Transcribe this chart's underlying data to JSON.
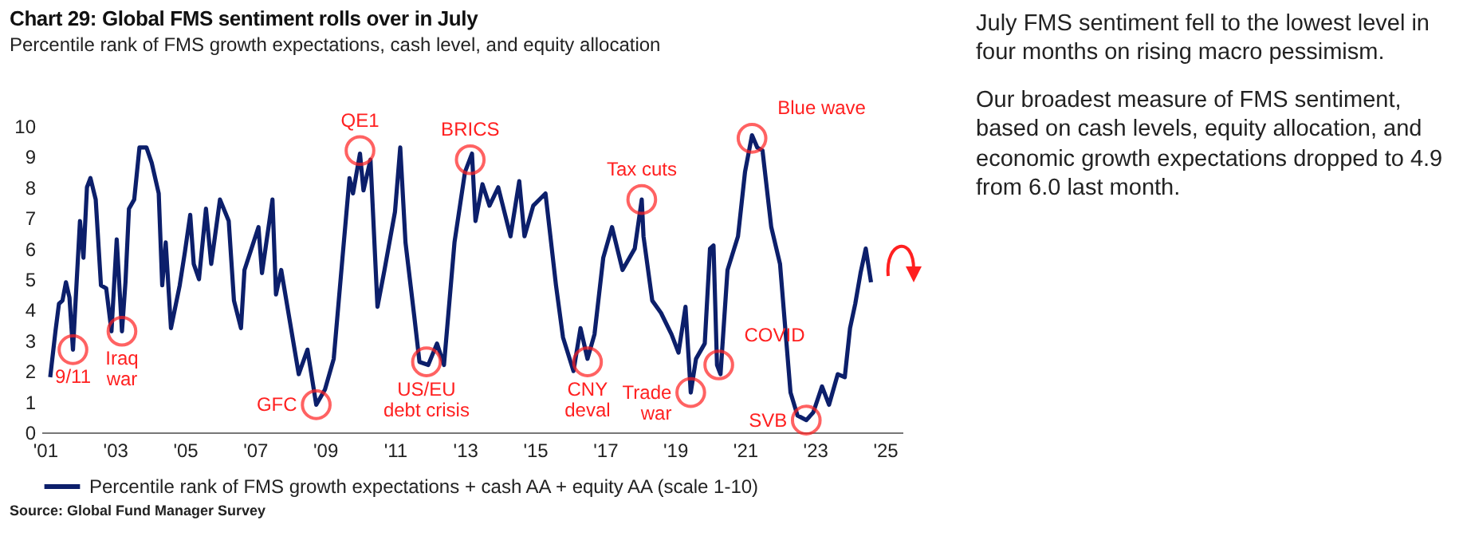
{
  "chart_data": {
    "type": "line",
    "title": "Chart 29: Global FMS sentiment rolls over in July",
    "subtitle": "Percentile rank of FMS growth expectations, cash level, and equity allocation",
    "xlim": [
      2000.9,
      2025.5
    ],
    "ylim": [
      0,
      10
    ],
    "xticks": [
      {
        "value": 2001,
        "label": "'01"
      },
      {
        "value": 2003,
        "label": "'03"
      },
      {
        "value": 2005,
        "label": "'05"
      },
      {
        "value": 2007,
        "label": "'07"
      },
      {
        "value": 2009,
        "label": "'09"
      },
      {
        "value": 2011,
        "label": "'11"
      },
      {
        "value": 2013,
        "label": "'13"
      },
      {
        "value": 2015,
        "label": "'15"
      },
      {
        "value": 2017,
        "label": "'17"
      },
      {
        "value": 2019,
        "label": "'19"
      },
      {
        "value": 2021,
        "label": "'21"
      },
      {
        "value": 2023,
        "label": "'23"
      },
      {
        "value": 2025,
        "label": "'25"
      }
    ],
    "yticks": [
      0,
      1,
      2,
      3,
      4,
      5,
      6,
      7,
      8,
      9,
      10
    ],
    "grid": false,
    "legend": "bottom",
    "series": [
      {
        "name": "Percentile rank of FMS growth expectations + cash AA + equity AA (scale 1-10)",
        "color": "#0c1f6b",
        "x": [
          2001.15,
          2001.3,
          2001.4,
          2001.5,
          2001.6,
          2001.7,
          2001.8,
          2001.9,
          2002.0,
          2002.1,
          2002.2,
          2002.3,
          2002.45,
          2002.6,
          2002.75,
          2002.9,
          2003.05,
          2003.2,
          2003.3,
          2003.4,
          2003.55,
          2003.7,
          2003.9,
          2004.05,
          2004.25,
          2004.35,
          2004.45,
          2004.6,
          2004.85,
          2005.0,
          2005.15,
          2005.25,
          2005.4,
          2005.6,
          2005.75,
          2006.0,
          2006.25,
          2006.4,
          2006.6,
          2006.7,
          2006.9,
          2007.1,
          2007.2,
          2007.5,
          2007.6,
          2007.75,
          2008.0,
          2008.25,
          2008.5,
          2008.75,
          2009.0,
          2009.25,
          2009.5,
          2009.7,
          2009.8,
          2010.0,
          2010.1,
          2010.3,
          2010.5,
          2010.7,
          2011.0,
          2011.15,
          2011.3,
          2011.55,
          2011.7,
          2011.95,
          2012.2,
          2012.4,
          2012.7,
          2013.0,
          2013.2,
          2013.3,
          2013.5,
          2013.7,
          2013.95,
          2014.3,
          2014.55,
          2014.7,
          2014.95,
          2015.3,
          2015.6,
          2015.8,
          2016.1,
          2016.3,
          2016.5,
          2016.7,
          2016.95,
          2017.2,
          2017.5,
          2017.85,
          2018.05,
          2018.1,
          2018.35,
          2018.6,
          2018.9,
          2019.1,
          2019.3,
          2019.45,
          2019.6,
          2019.85,
          2020.0,
          2020.1,
          2020.2,
          2020.3,
          2020.5,
          2020.8,
          2021.0,
          2021.2,
          2021.35,
          2021.5,
          2021.75,
          2022.0,
          2022.15,
          2022.3,
          2022.5,
          2022.75,
          2022.95,
          2023.2,
          2023.4,
          2023.65,
          2023.85,
          2024.0,
          2024.15,
          2024.3,
          2024.45,
          2024.6
        ],
        "values": [
          1.8,
          3.3,
          4.2,
          4.3,
          4.9,
          4.4,
          2.7,
          4.8,
          6.9,
          5.7,
          8.0,
          8.3,
          7.6,
          4.8,
          4.7,
          3.3,
          6.3,
          3.3,
          4.9,
          7.3,
          7.6,
          9.3,
          9.3,
          8.8,
          7.8,
          4.8,
          6.2,
          3.4,
          4.8,
          5.9,
          7.1,
          5.5,
          5.0,
          7.3,
          5.5,
          7.6,
          6.9,
          4.3,
          3.4,
          5.3,
          6.0,
          6.7,
          5.2,
          7.6,
          4.5,
          5.3,
          3.6,
          1.9,
          2.7,
          0.9,
          1.4,
          2.4,
          5.7,
          8.3,
          7.8,
          9.1,
          7.9,
          8.9,
          4.1,
          5.3,
          7.2,
          9.3,
          6.2,
          3.8,
          2.3,
          2.2,
          2.9,
          2.2,
          6.2,
          8.5,
          9.1,
          6.9,
          8.1,
          7.4,
          8.0,
          6.4,
          8.2,
          6.4,
          7.4,
          7.8,
          4.8,
          3.1,
          2.0,
          3.4,
          2.4,
          3.2,
          5.7,
          6.7,
          5.3,
          6.0,
          7.6,
          6.4,
          4.3,
          3.9,
          3.2,
          2.6,
          4.1,
          1.3,
          2.4,
          2.9,
          6.0,
          6.1,
          2.2,
          1.9,
          5.3,
          6.4,
          8.5,
          9.7,
          9.3,
          9.2,
          6.7,
          5.5,
          3.4,
          1.3,
          0.55,
          0.4,
          0.65,
          1.5,
          0.9,
          1.9,
          1.8,
          3.4,
          4.2,
          5.2,
          6.0,
          4.9
        ]
      }
    ],
    "annotations": [
      {
        "text": "9/11",
        "x": 2001.8,
        "y": 2.7
      },
      {
        "text": "Iraq\nwar",
        "x": 2003.2,
        "y": 3.3
      },
      {
        "text": "GFC",
        "x": 2008.75,
        "y": 0.9
      },
      {
        "text": "QE1",
        "x": 2010.0,
        "y": 9.2
      },
      {
        "text": "US/EU\ndebt crisis",
        "x": 2011.9,
        "y": 2.3
      },
      {
        "text": "BRICS",
        "x": 2013.15,
        "y": 8.9
      },
      {
        "text": "CNY\ndeval",
        "x": 2016.5,
        "y": 2.3
      },
      {
        "text": "Tax cuts",
        "x": 2018.05,
        "y": 7.6
      },
      {
        "text": "Trade\nwar",
        "x": 2019.45,
        "y": 1.3
      },
      {
        "text": "COVID",
        "x": 2020.25,
        "y": 2.2
      },
      {
        "text": "Blue wave",
        "x": 2021.2,
        "y": 9.6
      },
      {
        "text": "SVB",
        "x": 2022.75,
        "y": 0.4
      },
      "July FMS sentiment fell to the lowest level in four months on rising macro pessimism.",
      "Our broadest measure of FMS sentiment, based on cash levels, equity allocation, and economic growth expectations dropped to 4.9 from 6.0 last month.",
      "Source: Global Fund Manager Survey"
    ]
  }
}
